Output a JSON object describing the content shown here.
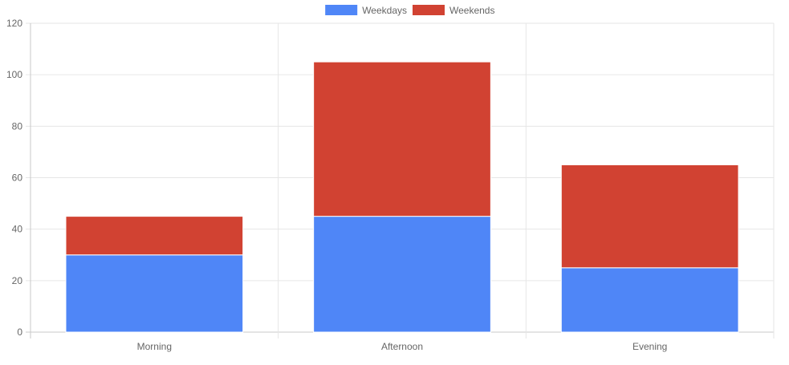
{
  "chart_data": {
    "type": "bar",
    "stacked": true,
    "categories": [
      "Morning",
      "Afternoon",
      "Evening"
    ],
    "series": [
      {
        "name": "Weekdays",
        "values": [
          30,
          45,
          25
        ],
        "color": "#4f86f7"
      },
      {
        "name": "Weekends",
        "values": [
          15,
          60,
          40
        ],
        "color": "#d14232"
      }
    ],
    "yticks": [
      0,
      20,
      40,
      60,
      80,
      100,
      120
    ],
    "ylim": [
      0,
      120
    ],
    "grid": true,
    "legend": "top-center"
  }
}
